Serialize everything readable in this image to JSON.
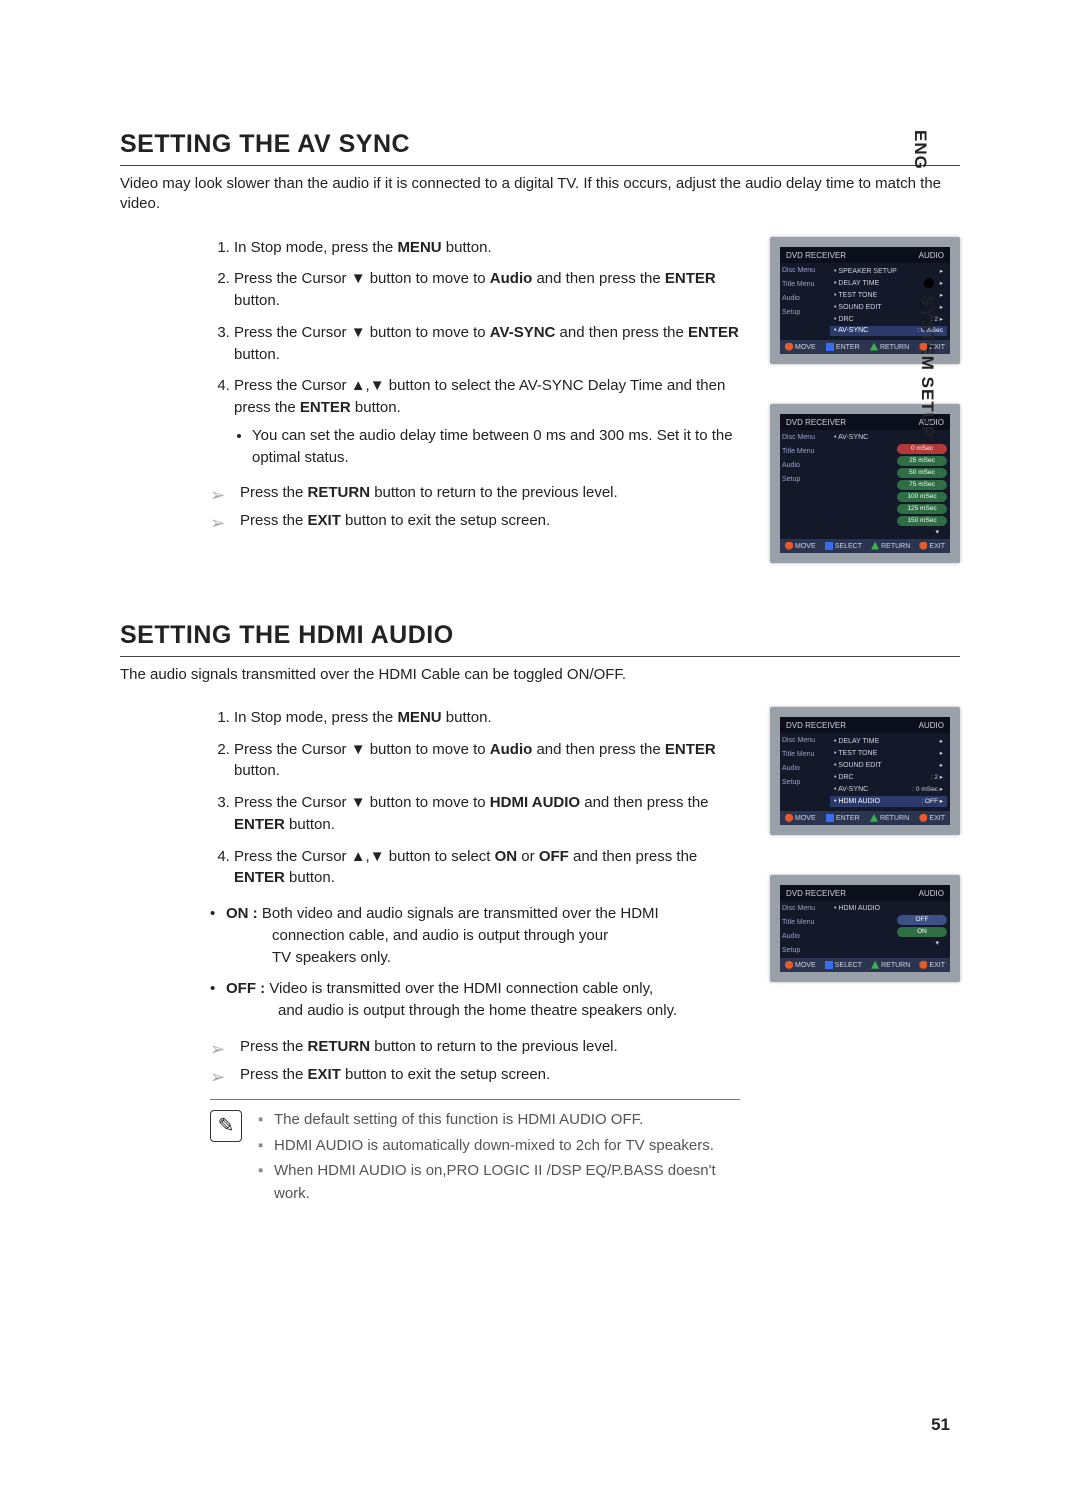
{
  "lang": "ENG",
  "sideTab": "SYSTEM SETUP",
  "pageNumber": "51",
  "section1": {
    "title": "SETTING THE AV SYNC",
    "intro": "Video may look slower than the audio if it is connected to a digital TV. If this occurs, adjust the audio delay time to match the video.",
    "step1_a": "In Stop mode, press the ",
    "step1_b": "MENU",
    "step1_c": " button.",
    "step2_a": "Press the Cursor ▼ button to move to ",
    "step2_b": "Audio",
    "step2_c": " and then press the ",
    "step2_d": "ENTER",
    "step2_e": " button.",
    "step3_a": "Press the Cursor ▼ button to move to ",
    "step3_b": "AV-SYNC",
    "step3_c": " and then press the ",
    "step3_d": "ENTER",
    "step3_e": " button.",
    "step4_a": "Press the Cursor ▲,▼ button to select the AV-SYNC Delay Time and then press the ",
    "step4_b": "ENTER",
    "step4_c": " button.",
    "step4_sub": "You can set the audio delay time between 0 ms and 300 ms. Set it to the optimal status.",
    "ret_a": "Press the ",
    "ret_b": "RETURN",
    "ret_c": " button to return to the previous level.",
    "exit_a": "Press the ",
    "exit_b": "EXIT",
    "exit_c": " button to exit the setup screen."
  },
  "section2": {
    "title": "SETTING THE HDMI AUDIO",
    "intro": "The audio signals transmitted over the HDMI Cable can be toggled ON/OFF.",
    "step1_a": "In Stop mode, press the ",
    "step1_b": "MENU",
    "step1_c": " button.",
    "step2_a": "Press the Cursor  ▼ button to move to ",
    "step2_b": "Audio",
    "step2_c": " and then press the ",
    "step2_d": "ENTER",
    "step2_e": " button.",
    "step3_a": "Press the Cursor ▼ button to move to ",
    "step3_b": "HDMI AUDIO",
    "step3_c": " and then press the ",
    "step3_d": "ENTER",
    "step3_e": " button.",
    "step4_a": "Press the Cursor ▲,▼ button to select ",
    "step4_b": "ON",
    "step4_c": " or ",
    "step4_d": "OFF",
    "step4_e": " and then press the ",
    "step4_f": "ENTER",
    "step4_g": " button.",
    "on_label": "ON : ",
    "on_text1": "Both video and audio signals are transmitted over the HDMI",
    "on_text2": "connection cable, and audio is output through your",
    "on_text3": "TV speakers only.",
    "off_label": "OFF : ",
    "off_text1": "Video is transmitted over the HDMI connection cable only,",
    "off_text2": "and audio is output through the home theatre speakers only.",
    "ret_a": "Press the ",
    "ret_b": "RETURN",
    "ret_c": " button to return to the previous level.",
    "exit_a": "Press the ",
    "exit_b": "EXIT",
    "exit_c": " button to exit the setup screen.",
    "note1": "The default setting of this function is HDMI AUDIO OFF.",
    "note2": "HDMI AUDIO is automatically down-mixed to 2ch for TV speakers.",
    "note3": "When HDMI AUDIO is on,PRO LOGIC II /DSP EQ/P.BASS doesn't work."
  },
  "osd": {
    "colors": {
      "frame": "#9aa0a8",
      "bg": "#14192a",
      "headerBg": "#0b0f1c",
      "footerBg": "#2b3550",
      "text": "#cfd3e0",
      "sideText": "#9aa3c7",
      "highlight": "#2b3a6b",
      "optRed": "#b23a3a",
      "optGreen": "#2f6e45",
      "optBox": "#3d5186"
    },
    "headerLeft": "DVD RECEIVER",
    "headerRight": "AUDIO",
    "side": {
      "a": "Disc Menu",
      "b": "Title Menu",
      "c": "Audio",
      "d": "Setup"
    },
    "footer": {
      "move": "MOVE",
      "enter": "ENTER",
      "select": "SELECT",
      "return": "RETURN",
      "exit": "EXIT"
    },
    "screen1": {
      "rows": [
        {
          "l": "• SPEAKER SETUP",
          "r": "▸"
        },
        {
          "l": "• DELAY TIME",
          "r": "▸"
        },
        {
          "l": "• TEST TONE",
          "r": "▸"
        },
        {
          "l": "• SOUND EDIT",
          "r": "▸"
        },
        {
          "l": "• DRC",
          "r": ": 2            ▸"
        },
        {
          "l": "• AV-SYNC",
          "r": ": 0 mSec",
          "hi": true
        }
      ]
    },
    "screen2": {
      "label": "• AV-SYNC",
      "opts": [
        {
          "t": "0 mSec",
          "c": "#b23a3a"
        },
        {
          "t": "25 mSec",
          "c": "#2f6e45"
        },
        {
          "t": "50 mSec",
          "c": "#2f6e45"
        },
        {
          "t": "75 mSec",
          "c": "#2f6e45"
        },
        {
          "t": "100 mSec",
          "c": "#2f6e45"
        },
        {
          "t": "125 mSec",
          "c": "#2f6e45"
        },
        {
          "t": "150 mSec",
          "c": "#2f6e45"
        }
      ]
    },
    "screen3": {
      "rows": [
        {
          "l": "• DELAY TIME",
          "r": "▸"
        },
        {
          "l": "• TEST TONE",
          "r": "▸"
        },
        {
          "l": "• SOUND EDIT",
          "r": "▸"
        },
        {
          "l": "• DRC",
          "r": ": 2            ▸"
        },
        {
          "l": "• AV-SYNC",
          "r": ": 0 mSec      ▸"
        },
        {
          "l": "• HDMI AUDIO",
          "r": ": OFF          ▸",
          "hi": true
        }
      ]
    },
    "screen4": {
      "label": "• HDMI AUDIO",
      "opts": [
        {
          "t": "OFF",
          "c": "#3d5186"
        },
        {
          "t": "ON",
          "c": "#2f6e45"
        }
      ]
    }
  }
}
